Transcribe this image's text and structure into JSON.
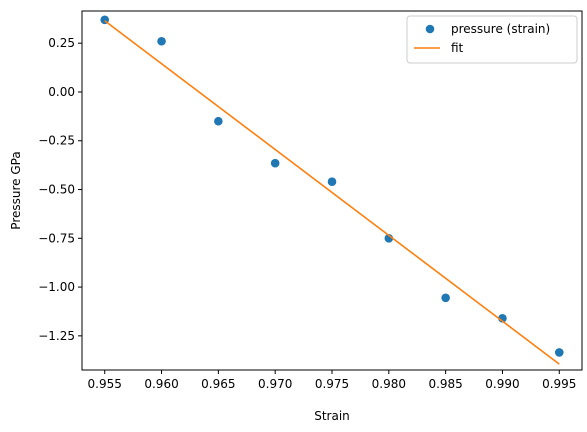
{
  "chart_data": {
    "type": "scatter",
    "xlabel": "Strain",
    "ylabel": "Pressure GPa",
    "xlim": [
      0.953,
      0.997
    ],
    "ylim": [
      -1.425,
      0.415
    ],
    "xticks": [
      0.955,
      0.96,
      0.965,
      0.97,
      0.975,
      0.98,
      0.985,
      0.99,
      0.995
    ],
    "xtick_labels": [
      "0.955",
      "0.960",
      "0.965",
      "0.970",
      "0.975",
      "0.980",
      "0.985",
      "0.990",
      "0.995"
    ],
    "yticks": [
      0.25,
      0.0,
      -0.25,
      -0.5,
      -0.75,
      -1.0,
      -1.25
    ],
    "ytick_labels": [
      "0.25",
      "0.00",
      "−0.25",
      "−0.50",
      "−0.75",
      "−1.00",
      "−1.25"
    ],
    "grid": false,
    "legend_position": "top-right",
    "series": [
      {
        "name": "pressure (strain)",
        "kind": "points",
        "color": "#1f77b4",
        "x": [
          0.955,
          0.96,
          0.965,
          0.97,
          0.975,
          0.98,
          0.985,
          0.99,
          0.995
        ],
        "y": [
          0.37,
          0.26,
          -0.15,
          -0.365,
          -0.46,
          -0.75,
          -1.055,
          -1.16,
          -1.335
        ]
      },
      {
        "name": "fit",
        "kind": "line",
        "color": "#ff7f0e",
        "x": [
          0.955,
          0.995
        ],
        "y": [
          0.365,
          -1.395
        ]
      }
    ]
  }
}
